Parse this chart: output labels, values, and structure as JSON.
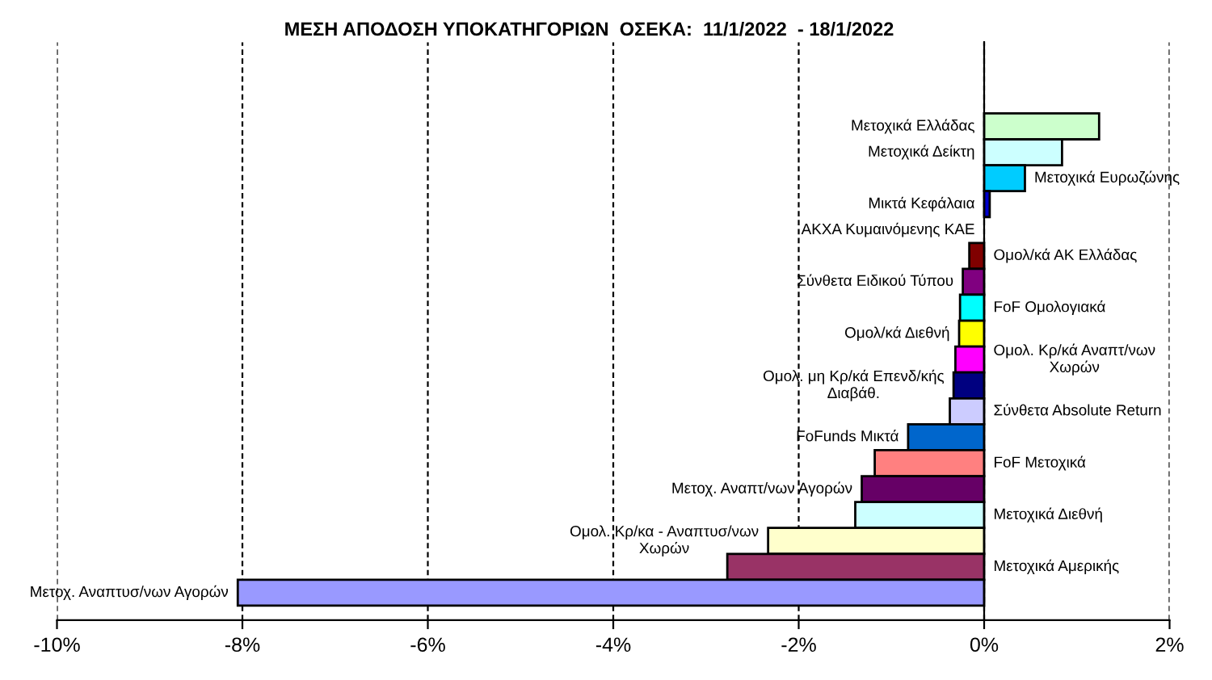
{
  "chart_data": {
    "type": "bar",
    "orientation": "horizontal",
    "title": "ΜΕΣΗ ΑΠΟΔΟΣΗ ΥΠΟΚΑΤΗΓΟΡΙΩΝ  ΟΣΕΚΑ:  11/1/2022  - 18/1/2022",
    "categories": [
      "Μετοχικά Ελλάδας",
      "Μετοχικά Δείκτη",
      "Μετοχικά Ευρωζώνης",
      "Μικτά Κεφάλαια",
      "ΑΚΧΑ Κυμαινόμενης ΚΑΕ",
      "Ομολ/κά ΑΚ Ελλάδας",
      "Σύνθετα Ειδικού Τύπου",
      "FoF Ομολογιακά",
      "Ομολ/κά Διεθνή",
      "Ομολ. Κρ/κά Αναπτ/νων\nΧωρών",
      "Ομολ. μη Κρ/κά Επενδ/κής\nΔιαβάθ.",
      "Σύνθετα Absolute Return",
      "FoFunds Μικτά",
      "FoF Μετοχικά",
      "Μετοχ. Αναπτ/νων Αγορών",
      "Μετοχικά Διεθνή",
      "Ομολ. Κρ/κα - Αναπτυσ/νων\nΧωρών",
      "Μετοχικά Αμερικής",
      "Μετοχ. Αναπτυσ/νων Αγορών"
    ],
    "values": [
      1.24,
      0.84,
      0.44,
      0.06,
      null,
      -0.16,
      -0.23,
      -0.26,
      -0.27,
      -0.31,
      -0.33,
      -0.37,
      -0.82,
      -1.18,
      -1.32,
      -1.39,
      -2.33,
      -2.77,
      -8.05
    ],
    "colors": [
      "#ccffcc",
      "#ccffff",
      "#00ccff",
      "#0000cc",
      "#000000",
      "#800000",
      "#800080",
      "#00ffff",
      "#ffff00",
      "#ff00ff",
      "#000080",
      "#ccccff",
      "#0066cc",
      "#ff8080",
      "#660066",
      "#ccffff",
      "#ffffcc",
      "#993366",
      "#9999ff"
    ],
    "xlim": [
      -10,
      2
    ],
    "xticks": [
      {
        "value": -10,
        "label": "-10%"
      },
      {
        "value": -8,
        "label": "-8%"
      },
      {
        "value": -6,
        "label": "-6%"
      },
      {
        "value": -4,
        "label": "-4%"
      },
      {
        "value": -2,
        "label": "-2%"
      },
      {
        "value": 0,
        "label": "0%"
      },
      {
        "value": 2,
        "label": "2%"
      }
    ],
    "grid": "x",
    "tick_labels": "x"
  }
}
